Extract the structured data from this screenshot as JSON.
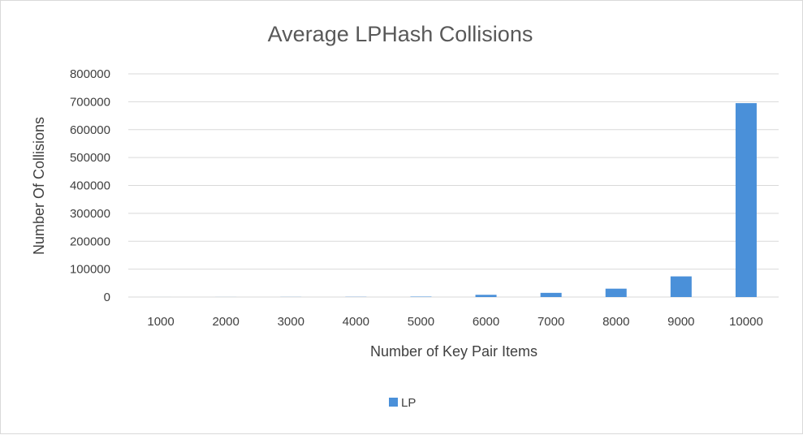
{
  "chart_data": {
    "type": "bar",
    "title": "Average LPHash Collisions",
    "xlabel": "Number of Key Pair Items",
    "ylabel": "Number Of Collisions",
    "categories": [
      "1000",
      "2000",
      "3000",
      "4000",
      "5000",
      "6000",
      "7000",
      "8000",
      "9000",
      "10000"
    ],
    "series": [
      {
        "name": "LP",
        "values": [
          80,
          200,
          400,
          700,
          1500,
          8000,
          15000,
          30000,
          74000,
          695000
        ]
      }
    ],
    "ylim": [
      0,
      800000
    ],
    "yticks": [
      "0",
      "100000",
      "200000",
      "300000",
      "400000",
      "500000",
      "600000",
      "700000",
      "800000"
    ],
    "grid": true,
    "legend_position": "bottom",
    "colors": {
      "bar": "#4a90d9",
      "grid": "#d9d9d9"
    }
  }
}
